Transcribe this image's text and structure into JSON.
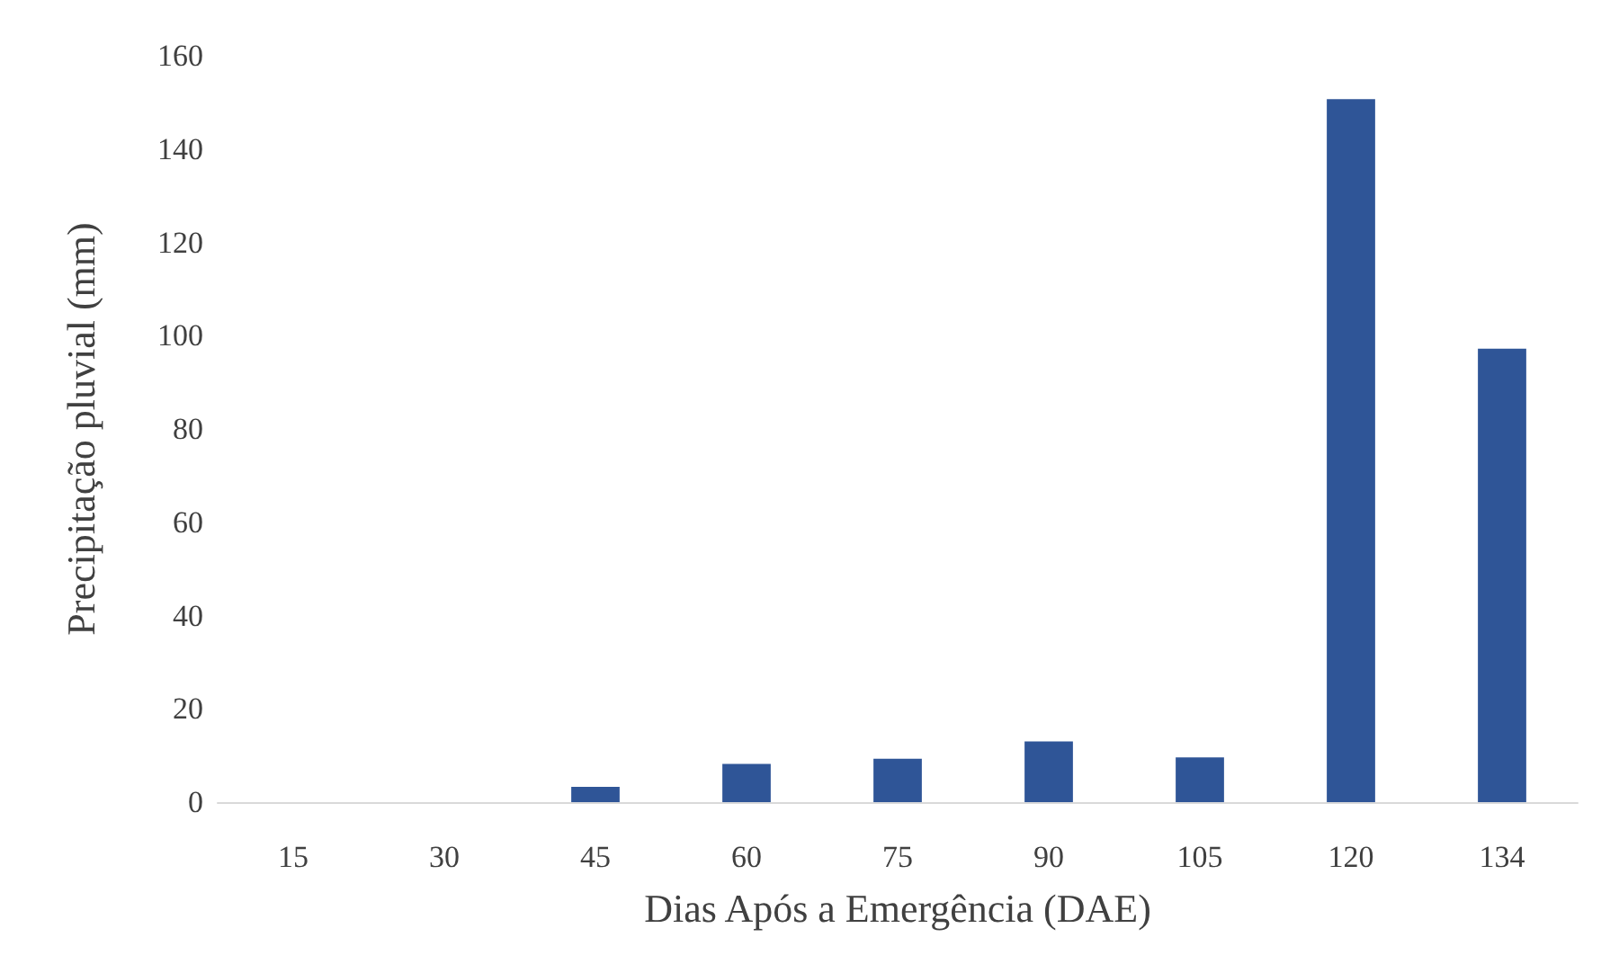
{
  "chart_data": {
    "type": "bar",
    "xlabel": "Dias Após a Emergência (DAE)",
    "ylabel": "Precipitação pluvial (mm)",
    "categories": [
      "15",
      "30",
      "45",
      "60",
      "75",
      "90",
      "105",
      "120",
      "134"
    ],
    "values": [
      0,
      0,
      3.3,
      8.2,
      9.3,
      13,
      9.6,
      150.7,
      97.2
    ],
    "color": "#2f5597",
    "ylim": [
      0,
      160
    ],
    "yticks": [
      0,
      20,
      40,
      60,
      80,
      100,
      120,
      140,
      160
    ]
  }
}
